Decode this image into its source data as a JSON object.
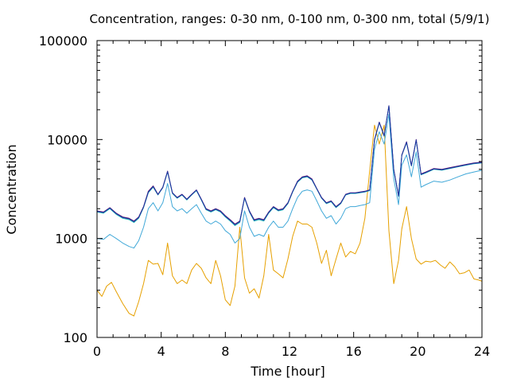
{
  "chart_data": {
    "type": "line",
    "title": "Concentration, ranges: 0-30 nm, 0-100 nm, 0-300 nm, total (5/9/1)",
    "xlabel": "Time [hour]",
    "ylabel": "Concentration",
    "xlim": [
      0,
      24
    ],
    "ylim": [
      100,
      100000
    ],
    "yscale": "log",
    "grid": false,
    "legend": "none",
    "x_ticks": [
      "0",
      "4",
      "8",
      "12",
      "16",
      "20",
      "24"
    ],
    "y_ticks": [
      "100",
      "1000",
      "10000",
      "100000"
    ],
    "x_tick_values": [
      0,
      4,
      8,
      12,
      16,
      20,
      24
    ],
    "y_tick_values": [
      100,
      1000,
      10000,
      100000
    ],
    "series": [
      {
        "color": "#e6a000",
        "x": [
          0,
          0.3,
          0.6,
          0.9,
          1.2,
          1.6,
          2.0,
          2.3,
          2.6,
          2.9,
          3.2,
          3.5,
          3.8,
          4.1,
          4.4,
          4.7,
          5.0,
          5.3,
          5.6,
          5.9,
          6.2,
          6.5,
          6.8,
          7.1,
          7.4,
          7.7,
          8.0,
          8.3,
          8.6,
          8.9,
          9.2,
          9.5,
          9.8,
          10.1,
          10.4,
          10.7,
          11.0,
          11.3,
          11.6,
          11.9,
          12.2,
          12.5,
          12.8,
          13.1,
          13.4,
          13.7,
          14.0,
          14.3,
          14.6,
          14.9,
          15.2,
          15.5,
          15.8,
          16.1,
          16.4,
          16.7,
          17.0,
          17.3,
          17.6,
          17.9,
          18.2,
          18.5,
          18.8,
          19.0,
          19.3,
          19.6,
          19.9,
          20.2,
          20.5,
          20.8,
          21.1,
          21.4,
          21.7,
          22.0,
          22.3,
          22.6,
          22.9,
          23.2,
          23.5,
          23.8,
          24.0
        ],
        "y": [
          300,
          260,
          330,
          360,
          290,
          220,
          175,
          165,
          230,
          350,
          600,
          550,
          560,
          430,
          900,
          420,
          350,
          380,
          350,
          480,
          560,
          500,
          400,
          350,
          600,
          420,
          240,
          210,
          330,
          1300,
          400,
          280,
          310,
          250,
          420,
          1100,
          480,
          440,
          400,
          620,
          1050,
          1500,
          1400,
          1400,
          1300,
          900,
          560,
          760,
          420,
          620,
          900,
          650,
          740,
          700,
          900,
          1600,
          4800,
          14000,
          9000,
          14000,
          1200,
          350,
          600,
          1250,
          2100,
          1000,
          620,
          550,
          590,
          580,
          600,
          540,
          500,
          580,
          520,
          440,
          450,
          480,
          390,
          380,
          370
        ]
      },
      {
        "color": "#40a8d8",
        "x": [
          0,
          0.4,
          0.8,
          1.2,
          1.6,
          2.0,
          2.3,
          2.6,
          2.9,
          3.2,
          3.5,
          3.8,
          4.1,
          4.4,
          4.7,
          5.0,
          5.3,
          5.6,
          5.9,
          6.2,
          6.5,
          6.8,
          7.1,
          7.4,
          7.7,
          8.0,
          8.3,
          8.6,
          8.9,
          9.2,
          9.5,
          9.8,
          10.1,
          10.4,
          10.7,
          11.0,
          11.3,
          11.6,
          11.9,
          12.2,
          12.5,
          12.8,
          13.1,
          13.4,
          13.7,
          14.0,
          14.3,
          14.6,
          14.9,
          15.2,
          15.5,
          15.8,
          16.1,
          16.4,
          16.7,
          17.0,
          17.3,
          17.6,
          17.9,
          18.2,
          18.5,
          18.8,
          19.0,
          19.3,
          19.6,
          19.9,
          20.2,
          20.5,
          21.0,
          21.5,
          22.0,
          22.5,
          23.0,
          23.5,
          24.0
        ],
        "y": [
          1000,
          980,
          1100,
          1000,
          900,
          830,
          800,
          950,
          1300,
          2000,
          2300,
          1900,
          2300,
          3600,
          2100,
          1900,
          2000,
          1800,
          2000,
          2200,
          1800,
          1500,
          1400,
          1500,
          1400,
          1200,
          1100,
          900,
          1000,
          1900,
          1300,
          1050,
          1100,
          1050,
          1300,
          1500,
          1300,
          1300,
          1500,
          2000,
          2600,
          3000,
          3100,
          3000,
          2400,
          1900,
          1600,
          1700,
          1400,
          1600,
          2000,
          2100,
          2100,
          2150,
          2200,
          2300,
          8000,
          12000,
          9000,
          18000,
          4000,
          2200,
          5500,
          7000,
          4200,
          7500,
          3300,
          3500,
          3800,
          3700,
          3900,
          4200,
          4500,
          4700,
          4900
        ]
      },
      {
        "color": "#5a1870",
        "x": [
          0,
          0.4,
          0.8,
          1.2,
          1.6,
          2.0,
          2.3,
          2.6,
          2.9,
          3.2,
          3.5,
          3.8,
          4.1,
          4.4,
          4.7,
          5.0,
          5.3,
          5.6,
          5.9,
          6.2,
          6.5,
          6.8,
          7.1,
          7.4,
          7.7,
          8.0,
          8.3,
          8.6,
          8.9,
          9.2,
          9.5,
          9.8,
          10.1,
          10.4,
          10.7,
          11.0,
          11.3,
          11.6,
          11.9,
          12.2,
          12.5,
          12.8,
          13.1,
          13.4,
          13.7,
          14.0,
          14.3,
          14.6,
          14.9,
          15.2,
          15.5,
          15.8,
          16.1,
          16.4,
          16.7,
          17.0,
          17.3,
          17.6,
          17.9,
          18.2,
          18.5,
          18.8,
          19.0,
          19.3,
          19.6,
          19.9,
          20.2,
          20.5,
          21.0,
          21.5,
          22.0,
          22.5,
          23.0,
          23.5,
          24.0
        ],
        "y": [
          1900,
          1850,
          2050,
          1800,
          1650,
          1600,
          1500,
          1650,
          2100,
          3000,
          3400,
          2800,
          3300,
          4800,
          2900,
          2600,
          2800,
          2500,
          2800,
          3100,
          2500,
          2000,
          1900,
          2000,
          1900,
          1700,
          1550,
          1400,
          1500,
          2600,
          1900,
          1550,
          1600,
          1550,
          1850,
          2100,
          1950,
          2000,
          2300,
          3000,
          3800,
          4200,
          4300,
          4000,
          3200,
          2600,
          2300,
          2400,
          2100,
          2300,
          2800,
          2900,
          2900,
          2950,
          3000,
          3100,
          10000,
          15000,
          11000,
          22000,
          5000,
          2700,
          7000,
          9500,
          5500,
          10000,
          4500,
          4700,
          5100,
          5000,
          5200,
          5400,
          5600,
          5800,
          5900
        ]
      },
      {
        "color": "#20b8b8",
        "x": [
          0,
          0.4,
          0.8,
          1.2,
          1.6,
          2.0,
          2.3,
          2.6,
          2.9,
          3.2,
          3.5,
          3.8,
          4.1,
          4.4,
          4.7,
          5.0,
          5.3,
          5.6,
          5.9,
          6.2,
          6.5,
          6.8,
          7.1,
          7.4,
          7.7,
          8.0,
          8.3,
          8.6,
          8.9,
          9.2,
          9.5,
          9.8,
          10.1,
          10.4,
          10.7,
          11.0,
          11.3,
          11.6,
          11.9,
          12.2,
          12.5,
          12.8,
          13.1,
          13.4,
          13.7,
          14.0,
          14.3,
          14.6,
          14.9,
          15.2,
          15.5,
          15.8,
          16.1,
          16.4,
          16.7,
          17.0,
          17.3,
          17.6,
          17.9,
          18.2,
          18.5,
          18.8,
          19.0,
          19.3,
          19.6,
          19.9,
          20.2,
          20.5,
          21.0,
          21.5,
          22.0,
          22.5,
          23.0,
          23.5,
          24.0
        ],
        "y": [
          1850,
          1800,
          2000,
          1750,
          1600,
          1550,
          1450,
          1600,
          2050,
          2900,
          3300,
          2750,
          3250,
          4700,
          2850,
          2550,
          2750,
          2450,
          2750,
          3050,
          2450,
          1950,
          1850,
          1950,
          1850,
          1650,
          1500,
          1350,
          1450,
          2550,
          1850,
          1500,
          1550,
          1500,
          1800,
          2050,
          1900,
          1950,
          2250,
          2950,
          3700,
          4100,
          4200,
          3900,
          3150,
          2550,
          2250,
          2350,
          2050,
          2250,
          2750,
          2850,
          2850,
          2900,
          2950,
          3050,
          9800,
          14800,
          10800,
          21800,
          4900,
          2650,
          6900,
          9300,
          5400,
          9800,
          4400,
          4600,
          5000,
          4900,
          5100,
          5300,
          5500,
          5700,
          5800
        ]
      },
      {
        "color": "#2030a0",
        "x": [
          0,
          0.4,
          0.8,
          1.2,
          1.6,
          2.0,
          2.3,
          2.6,
          2.9,
          3.2,
          3.5,
          3.8,
          4.1,
          4.4,
          4.7,
          5.0,
          5.3,
          5.6,
          5.9,
          6.2,
          6.5,
          6.8,
          7.1,
          7.4,
          7.7,
          8.0,
          8.3,
          8.6,
          8.9,
          9.2,
          9.5,
          9.8,
          10.1,
          10.4,
          10.7,
          11.0,
          11.3,
          11.6,
          11.9,
          12.2,
          12.5,
          12.8,
          13.1,
          13.4,
          13.7,
          14.0,
          14.3,
          14.6,
          14.9,
          15.2,
          15.5,
          15.8,
          16.1,
          16.4,
          16.7,
          17.0,
          17.3,
          17.6,
          17.9,
          18.2,
          18.5,
          18.8,
          19.0,
          19.3,
          19.6,
          19.9,
          20.2,
          20.5,
          21.0,
          21.5,
          22.0,
          22.5,
          23.0,
          23.5,
          24.0
        ],
        "y": [
          1880,
          1830,
          2030,
          1780,
          1630,
          1580,
          1480,
          1630,
          2080,
          2950,
          3350,
          2780,
          3280,
          4750,
          2880,
          2580,
          2780,
          2480,
          2780,
          3080,
          2480,
          1980,
          1880,
          1980,
          1880,
          1680,
          1530,
          1380,
          1480,
          2580,
          1880,
          1530,
          1580,
          1530,
          1830,
          2080,
          1930,
          1980,
          2280,
          2980,
          3750,
          4150,
          4250,
          3950,
          3180,
          2580,
          2280,
          2380,
          2080,
          2280,
          2780,
          2880,
          2880,
          2930,
          2980,
          3080,
          9900,
          14900,
          10900,
          21900,
          4950,
          2680,
          6950,
          9400,
          5450,
          9900,
          4450,
          4650,
          5050,
          4950,
          5150,
          5350,
          5550,
          5750,
          5850
        ]
      }
    ]
  }
}
